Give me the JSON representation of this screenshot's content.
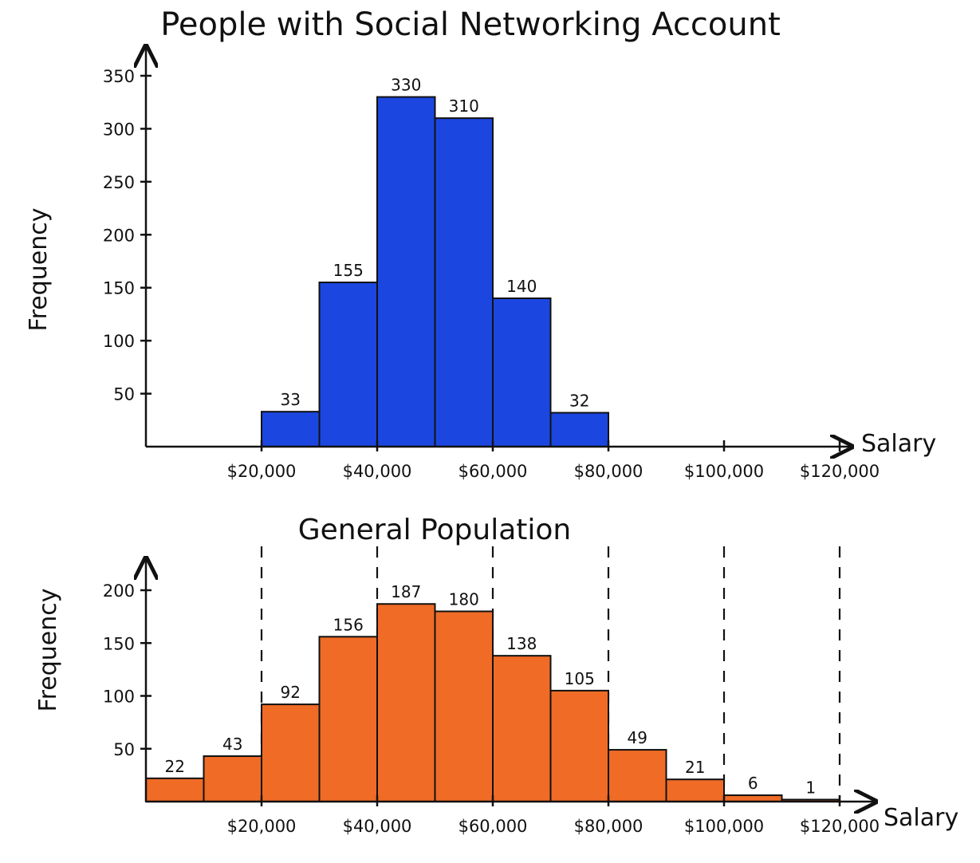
{
  "charts": [
    {
      "title": "People with Social Networking Account",
      "chart_data": {
        "type": "bar",
        "title": "People with Social Networking Account",
        "xlabel": "Salary",
        "ylabel": "Frequency",
        "ylim": [
          0,
          350
        ],
        "y_ticks": [
          "350",
          "300",
          "250",
          "200",
          "150",
          "100",
          "50"
        ],
        "x_ticks": [
          "$20,000",
          "$40,000",
          "$60,000",
          "$80,000",
          "$100,000",
          "$120,000"
        ],
        "bins": [
          {
            "start": 20000,
            "end": 30000,
            "value": 33,
            "label": "33"
          },
          {
            "start": 30000,
            "end": 40000,
            "value": 155,
            "label": "155"
          },
          {
            "start": 40000,
            "end": 50000,
            "value": 330,
            "label": "330"
          },
          {
            "start": 50000,
            "end": 60000,
            "value": 310,
            "label": "310"
          },
          {
            "start": 60000,
            "end": 70000,
            "value": 140,
            "label": "140"
          },
          {
            "start": 70000,
            "end": 80000,
            "value": 32,
            "label": "32"
          }
        ]
      }
    },
    {
      "title": "General Population",
      "chart_data": {
        "type": "bar",
        "title": "General Population",
        "xlabel": "Salary",
        "ylabel": "Frequency",
        "ylim": [
          0,
          200
        ],
        "y_ticks": [
          "200",
          "150",
          "100",
          "50"
        ],
        "x_ticks": [
          "$20,000",
          "$40,000",
          "$60,000",
          "$80,000",
          "$100,000",
          "$120,000"
        ],
        "bins": [
          {
            "start": 0,
            "end": 10000,
            "value": 22,
            "label": "22"
          },
          {
            "start": 10000,
            "end": 20000,
            "value": 43,
            "label": "43"
          },
          {
            "start": 20000,
            "end": 30000,
            "value": 92,
            "label": "92"
          },
          {
            "start": 30000,
            "end": 40000,
            "value": 156,
            "label": "156"
          },
          {
            "start": 40000,
            "end": 50000,
            "value": 187,
            "label": "187"
          },
          {
            "start": 50000,
            "end": 60000,
            "value": 180,
            "label": "180"
          },
          {
            "start": 60000,
            "end": 70000,
            "value": 138,
            "label": "138"
          },
          {
            "start": 70000,
            "end": 80000,
            "value": 105,
            "label": "105"
          },
          {
            "start": 80000,
            "end": 90000,
            "value": 49,
            "label": "49"
          },
          {
            "start": 90000,
            "end": 100000,
            "value": 21,
            "label": "21"
          },
          {
            "start": 100000,
            "end": 110000,
            "value": 6,
            "label": "6"
          },
          {
            "start": 110000,
            "end": 120000,
            "value": 1,
            "label": "1"
          }
        ],
        "guide_lines_at": [
          20000,
          40000,
          60000,
          80000,
          100000,
          120000
        ]
      }
    }
  ],
  "colors": {
    "top_bars": "#1b47e0",
    "bottom_bars": "#ef6b26",
    "outline": "#111111"
  }
}
